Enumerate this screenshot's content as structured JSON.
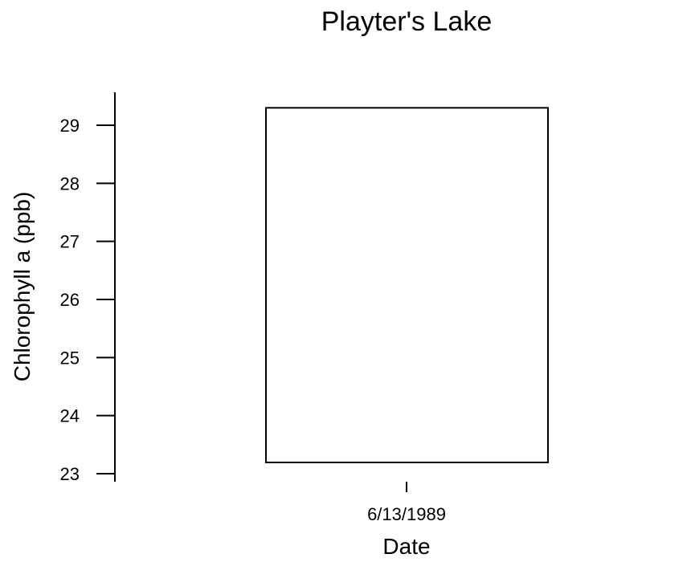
{
  "chart_data": {
    "type": "bar",
    "title": "Playter's Lake",
    "xlabel": "Date",
    "ylabel": "Chlorophyll a (ppb)",
    "categories": [
      "6/13/1989"
    ],
    "values": [
      29.3
    ],
    "ylim": [
      23,
      29.6
    ],
    "yticks": [
      23,
      24,
      25,
      26,
      27,
      28,
      29
    ],
    "grid": false,
    "legend": "none"
  }
}
